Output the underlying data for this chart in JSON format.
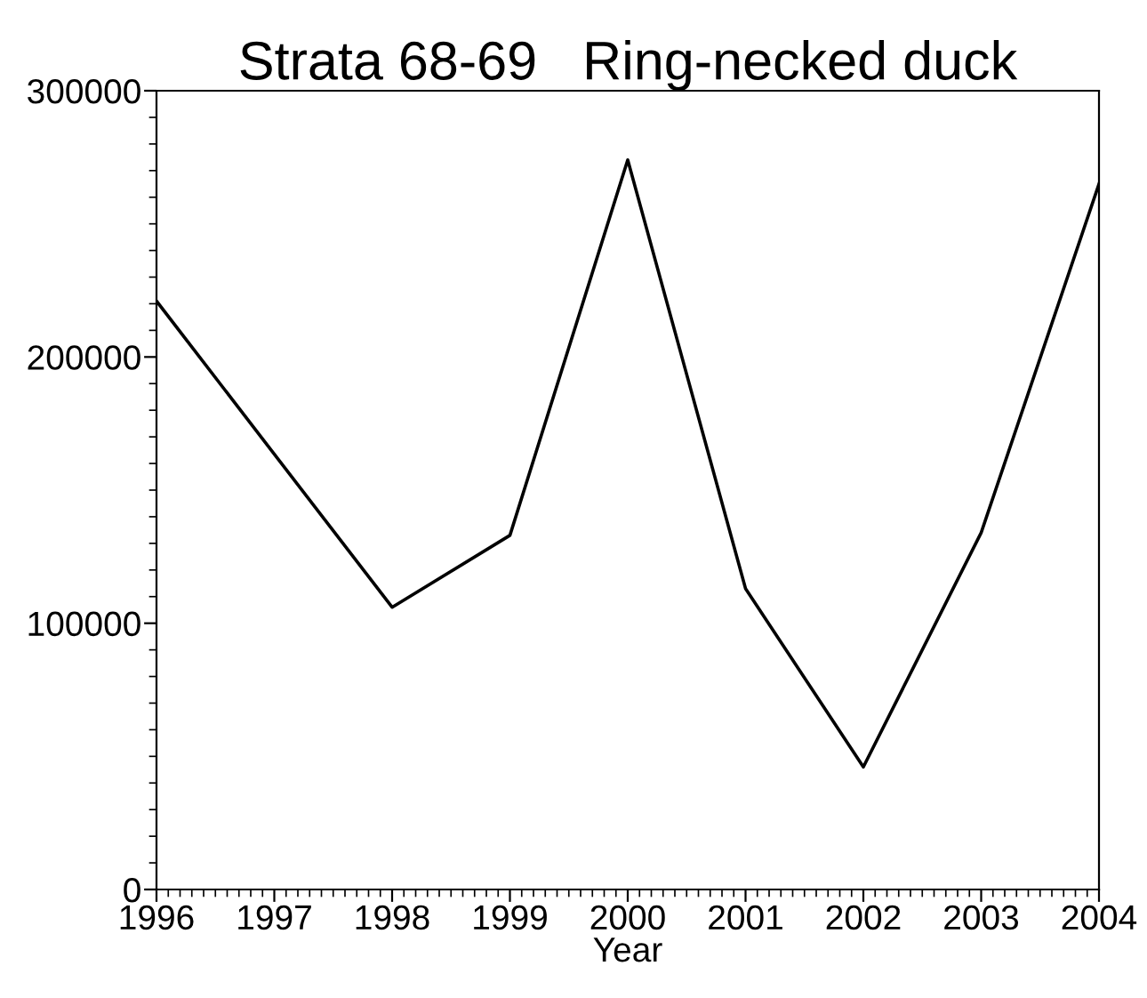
{
  "chart_data": {
    "type": "line",
    "title": "Strata 68-69   Ring-necked duck",
    "xlabel": "Year",
    "x": [
      1996,
      1997,
      1998,
      1999,
      2000,
      2001,
      2002,
      2003,
      2004
    ],
    "series": [
      {
        "color": "#000000",
        "values": [
          221000,
          null,
          106000,
          133000,
          274000,
          113000,
          46000,
          134000,
          265000
        ]
      }
    ],
    "xlim": [
      1996,
      2004
    ],
    "xticks": [
      1996,
      1997,
      1998,
      1999,
      2000,
      2001,
      2002,
      2003,
      2004
    ],
    "ylim": [
      0,
      300000
    ],
    "yticks": [
      0,
      100000,
      200000,
      300000
    ],
    "grid": false,
    "legend": false,
    "marker": "none",
    "line_style": "solid"
  }
}
